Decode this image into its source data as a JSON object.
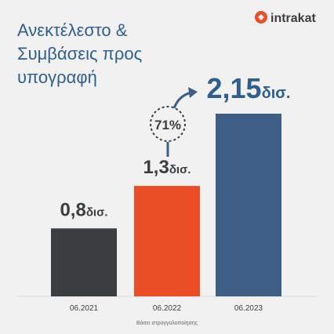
{
  "chart_data": {
    "type": "bar",
    "title_lines": [
      "Ανεκτέλεστο &",
      "Συμβάσεις προς",
      "υπογραφή"
    ],
    "logo": "intrakat",
    "categories": [
      "06.2021",
      "06.2022",
      "06.2023"
    ],
    "values": [
      0.8,
      1.3,
      2.15
    ],
    "value_labels": [
      "0,8",
      "1,3",
      "2,15"
    ],
    "value_unit": "δισ.",
    "colors": [
      "#3b3e41",
      "#e94e26",
      "#3d5f86"
    ],
    "ylim": [
      0,
      2.15
    ],
    "annotation": "71%",
    "footnote": "Βάσει στρογγυλοποίησης"
  }
}
